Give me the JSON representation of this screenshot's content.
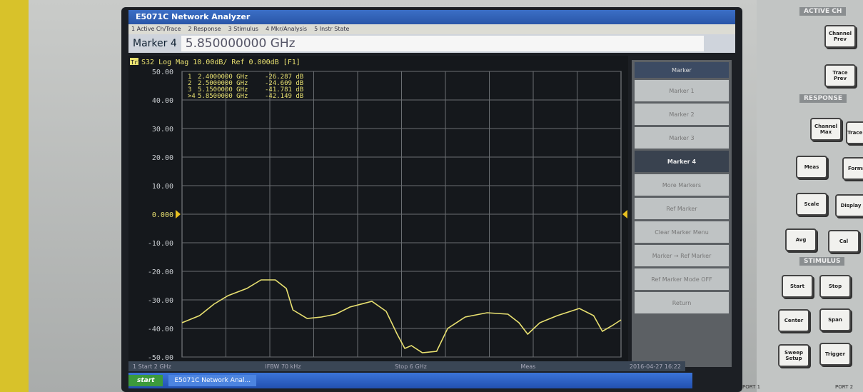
{
  "window": {
    "title": "E5071C Network Analyzer",
    "menu": [
      "1 Active Ch/Trace",
      "2 Response",
      "3 Stimulus",
      "4 Mkr/Analysis",
      "5 Instr State"
    ],
    "entry_label": "Marker 4",
    "entry_value": "5.850000000 GHz"
  },
  "chart_data": {
    "type": "line",
    "header": "S32 Log Mag 10.00dB/ Ref 0.000dB [F1]",
    "trace_label": "Tr1",
    "xlim": [
      2,
      6
    ],
    "ylim": [
      -50,
      50
    ],
    "yticks": [
      {
        "value": 50,
        "label": "50.00"
      },
      {
        "value": 40,
        "label": "40.00"
      },
      {
        "value": 30,
        "label": "30.00"
      },
      {
        "value": 20,
        "label": "20.00"
      },
      {
        "value": 10,
        "label": "10.00"
      },
      {
        "value": 0,
        "label": "0.000"
      },
      {
        "value": -10,
        "label": "-10.00"
      },
      {
        "value": -20,
        "label": "-20.00"
      },
      {
        "value": -30,
        "label": "-30.00"
      },
      {
        "value": -40,
        "label": "-40.00"
      },
      {
        "value": -50,
        "label": "-50.00"
      }
    ],
    "grid": true,
    "x": [
      2.0,
      2.16,
      2.29,
      2.42,
      2.59,
      2.72,
      2.85,
      2.95,
      3.01,
      3.14,
      3.27,
      3.4,
      3.53,
      3.73,
      3.86,
      3.96,
      4.03,
      4.09,
      4.19,
      4.32,
      4.42,
      4.58,
      4.78,
      4.97,
      5.07,
      5.15,
      5.26,
      5.42,
      5.62,
      5.75,
      5.83,
      5.92,
      6.0
    ],
    "series": [
      {
        "name": "S32",
        "color": "#e8e070",
        "values": [
          -38,
          -35.5,
          -31.5,
          -28.5,
          -26,
          -23,
          -23,
          -26,
          -33.5,
          -36.5,
          -36,
          -35,
          -32.5,
          -30.5,
          -34,
          -42,
          -47,
          -46,
          -48.5,
          -48,
          -40,
          -36,
          -34.5,
          -35,
          -38,
          -42,
          -38,
          -35.5,
          -33,
          -35.5,
          -41,
          -39,
          -37
        ]
      }
    ],
    "markers": [
      [
        "1",
        "2.4000000 GHz",
        "-26.287 dB"
      ],
      [
        "2",
        "2.5000000 GHz",
        "-24.609 dB"
      ],
      [
        "3",
        "5.1500000 GHz",
        "-41.781 dB"
      ],
      [
        ">4",
        "5.8500000 GHz",
        "-42.149 dB"
      ]
    ]
  },
  "softkeys": [
    "Marker",
    "Marker 1",
    "Marker 2",
    "Marker 3",
    "Marker 4",
    "More Markers",
    "Ref Marker",
    "Clear Marker Menu",
    "Marker → Ref Marker",
    "Ref Marker Mode OFF",
    "Return"
  ],
  "status": {
    "start": "1 Start 2 GHz",
    "ifbw": "IFBW 70 kHz",
    "stop": "Stop 6 GHz",
    "meas": "Meas",
    "time": "2016-04-27 16:22"
  },
  "taskbar": {
    "start": "start",
    "app": "E5071C Network Anal..."
  },
  "panel": {
    "active": "ACTIVE CH",
    "response": "RESPONSE",
    "stimulus": "STIMULUS",
    "buttons": [
      "Channel Prev",
      "Trace Prev",
      "Channel Max",
      "Trace Max",
      "Meas",
      "Format",
      "Scale",
      "Display",
      "Avg",
      "Cal",
      "Start",
      "Stop",
      "Center",
      "Span",
      "Sweep Setup",
      "Trigger"
    ],
    "ports": [
      "PORT 1",
      "PORT 2"
    ]
  }
}
